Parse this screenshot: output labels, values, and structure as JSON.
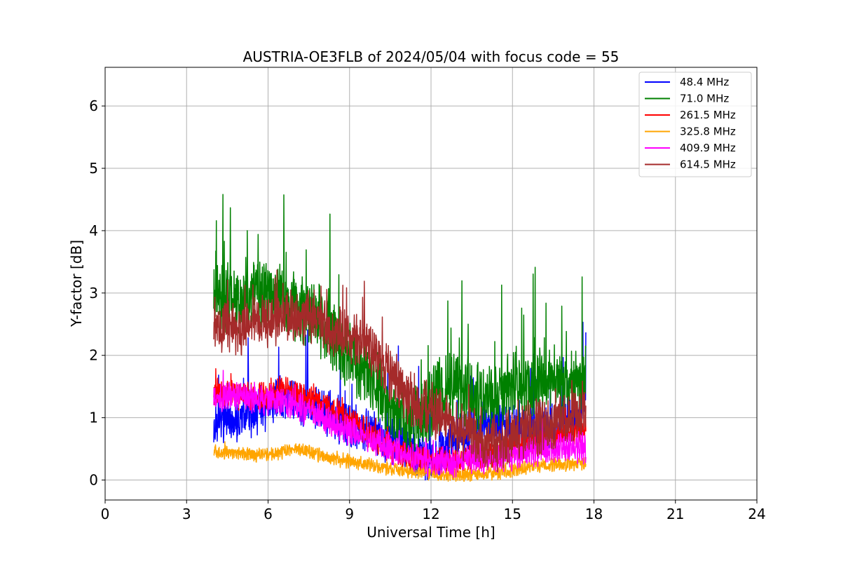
{
  "chart_data": {
    "type": "line",
    "title": "AUSTRIA-OE3FLB of 2024/05/04 with focus code = 55",
    "xlabel": "Universal Time [h]",
    "ylabel": "Y-factor [dB]",
    "xlim": [
      0,
      24
    ],
    "ylim": [
      -0.32,
      6.62
    ],
    "xticks": [
      0,
      3,
      6,
      9,
      12,
      15,
      18,
      21,
      24
    ],
    "yticks": [
      0,
      1,
      2,
      3,
      4,
      5,
      6
    ],
    "grid": true,
    "legend_position": "top-right",
    "series": [
      {
        "name": "48.4 MHz",
        "color": "#0000ff",
        "x": [
          4.0,
          4.5,
          5.0,
          5.5,
          6.0,
          6.5,
          7.0,
          7.5,
          8.0,
          8.5,
          9.0,
          9.5,
          10.0,
          10.5,
          11.0,
          11.5,
          12.0,
          12.5,
          13.0,
          13.5,
          14.0,
          14.5,
          15.0,
          15.5,
          16.0,
          16.5,
          17.0,
          17.5,
          17.7
        ],
        "y": [
          0.9,
          1.0,
          0.95,
          1.1,
          1.2,
          1.3,
          1.3,
          1.2,
          1.1,
          1.0,
          0.9,
          0.8,
          0.7,
          0.65,
          0.6,
          0.4,
          0.35,
          0.45,
          0.7,
          0.8,
          0.9,
          0.85,
          0.8,
          0.75,
          0.8,
          0.85,
          0.95,
          1.1,
          1.5
        ],
        "noise": 0.3,
        "spike": 1.2
      },
      {
        "name": "71.0 MHz",
        "color": "#008000",
        "x": [
          4.0,
          4.5,
          5.0,
          5.5,
          6.0,
          6.5,
          7.0,
          7.5,
          8.0,
          8.5,
          9.0,
          9.5,
          10.0,
          10.5,
          11.0,
          11.5,
          12.0,
          12.5,
          13.0,
          13.5,
          14.0,
          14.5,
          15.0,
          15.5,
          16.0,
          16.5,
          17.0,
          17.5,
          17.7
        ],
        "y": [
          3.0,
          2.9,
          2.8,
          3.0,
          3.0,
          2.9,
          2.8,
          2.7,
          2.5,
          2.3,
          2.0,
          1.8,
          1.5,
          1.1,
          0.9,
          0.95,
          1.2,
          1.4,
          1.5,
          1.4,
          1.3,
          1.4,
          1.5,
          1.5,
          1.6,
          1.6,
          1.5,
          1.5,
          1.6
        ],
        "noise": 0.45,
        "spike": 1.5
      },
      {
        "name": "261.5 MHz",
        "color": "#ff0000",
        "x": [
          4.0,
          4.5,
          5.0,
          5.5,
          6.0,
          6.5,
          7.0,
          7.5,
          8.0,
          8.5,
          9.0,
          9.5,
          10.0,
          10.5,
          11.0,
          11.5,
          12.0,
          12.5,
          13.0,
          13.5,
          14.0,
          14.5,
          15.0,
          15.5,
          16.0,
          16.5,
          17.0,
          17.5,
          17.7
        ],
        "y": [
          1.4,
          1.4,
          1.35,
          1.35,
          1.35,
          1.45,
          1.4,
          1.3,
          1.2,
          1.1,
          0.95,
          0.8,
          0.65,
          0.5,
          0.4,
          0.35,
          0.3,
          0.3,
          0.3,
          0.35,
          0.4,
          0.45,
          0.5,
          0.6,
          0.65,
          0.7,
          0.75,
          0.8,
          0.85
        ],
        "noise": 0.18,
        "spike": 0.3
      },
      {
        "name": "325.8 MHz",
        "color": "#ffa500",
        "x": [
          4.0,
          4.5,
          5.0,
          5.5,
          6.0,
          6.5,
          7.0,
          7.5,
          8.0,
          8.5,
          9.0,
          9.5,
          10.0,
          10.5,
          11.0,
          11.5,
          12.0,
          12.5,
          13.0,
          13.5,
          14.0,
          14.5,
          15.0,
          15.5,
          16.0,
          16.5,
          17.0,
          17.5,
          17.7
        ],
        "y": [
          0.45,
          0.45,
          0.42,
          0.4,
          0.4,
          0.45,
          0.52,
          0.45,
          0.38,
          0.33,
          0.3,
          0.27,
          0.22,
          0.18,
          0.15,
          0.12,
          0.1,
          0.08,
          0.08,
          0.08,
          0.1,
          0.12,
          0.15,
          0.2,
          0.22,
          0.25,
          0.25,
          0.26,
          0.27
        ],
        "noise": 0.09,
        "spike": 0.12
      },
      {
        "name": "409.9 MHz",
        "color": "#ff00ff",
        "x": [
          4.0,
          4.5,
          5.0,
          5.5,
          6.0,
          6.5,
          7.0,
          7.5,
          8.0,
          8.5,
          9.0,
          9.5,
          10.0,
          10.5,
          11.0,
          11.5,
          12.0,
          12.5,
          13.0,
          13.5,
          14.0,
          14.5,
          15.0,
          15.5,
          16.0,
          16.5,
          17.0,
          17.5,
          17.7
        ],
        "y": [
          1.35,
          1.35,
          1.33,
          1.3,
          1.28,
          1.25,
          1.2,
          1.1,
          1.0,
          0.9,
          0.8,
          0.7,
          0.6,
          0.5,
          0.4,
          0.32,
          0.3,
          0.3,
          0.3,
          0.32,
          0.35,
          0.38,
          0.4,
          0.45,
          0.48,
          0.5,
          0.52,
          0.52,
          0.5
        ],
        "noise": 0.2,
        "spike": 0.25
      },
      {
        "name": "614.5 MHz",
        "color": "#a52a2a",
        "x": [
          4.0,
          4.5,
          5.0,
          5.5,
          6.0,
          6.5,
          7.0,
          7.5,
          8.0,
          8.5,
          9.0,
          9.5,
          10.0,
          10.5,
          11.0,
          11.5,
          12.0,
          12.5,
          13.0,
          13.5,
          14.0,
          14.5,
          15.0,
          15.5,
          16.0,
          16.5,
          17.0,
          17.5,
          17.7
        ],
        "y": [
          2.5,
          2.5,
          2.4,
          2.5,
          2.55,
          2.6,
          2.65,
          2.6,
          2.5,
          2.4,
          2.3,
          2.2,
          2.0,
          1.7,
          1.4,
          1.2,
          1.1,
          1.0,
          0.8,
          0.7,
          0.6,
          0.6,
          0.7,
          0.8,
          0.85,
          0.9,
          1.0,
          1.1,
          1.2
        ],
        "noise": 0.35,
        "spike": 0.6
      }
    ]
  }
}
